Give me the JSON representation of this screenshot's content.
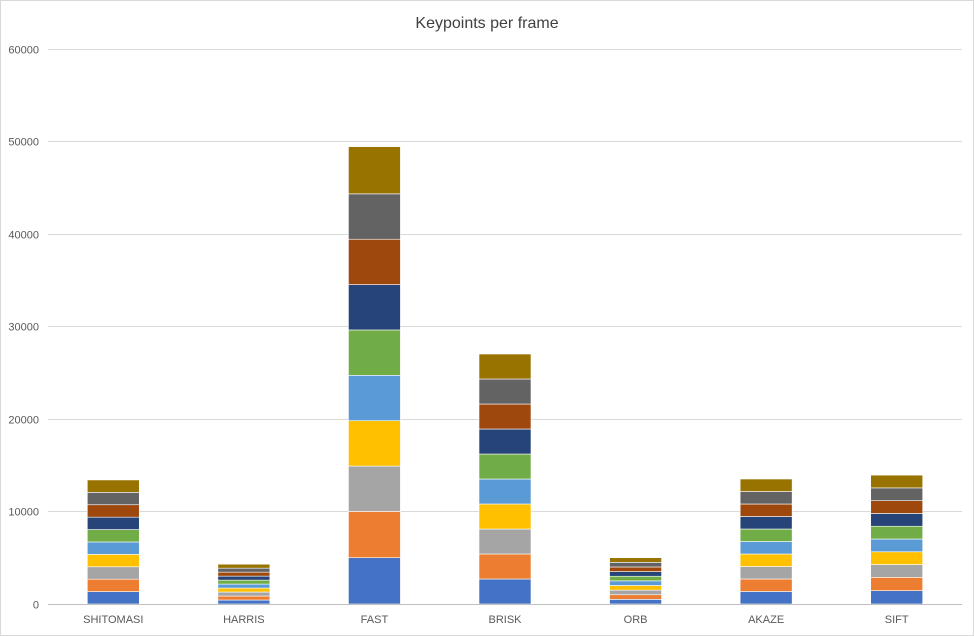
{
  "chart_data": {
    "type": "bar",
    "stacked": true,
    "title": "Keypoints per frame",
    "xlabel": "",
    "ylabel": "",
    "ylim": [
      0,
      60000
    ],
    "yticks": [
      0,
      10000,
      20000,
      30000,
      40000,
      50000,
      60000
    ],
    "grid": true,
    "legend": "none",
    "categories": [
      "SHITOMASI",
      "HARRIS",
      "FAST",
      "BRISK",
      "ORB",
      "AKAZE",
      "SIFT"
    ],
    "series": [
      {
        "color": "#4472C4",
        "values": [
          1340,
          430,
          5000,
          2700,
          500,
          1350,
          1440
        ]
      },
      {
        "color": "#ED7D31",
        "values": [
          1340,
          430,
          5000,
          2700,
          500,
          1350,
          1440
        ]
      },
      {
        "color": "#A5A5A5",
        "values": [
          1340,
          430,
          4900,
          2700,
          500,
          1350,
          1380
        ]
      },
      {
        "color": "#FFC000",
        "values": [
          1340,
          430,
          4900,
          2700,
          500,
          1350,
          1380
        ]
      },
      {
        "color": "#5B9BD5",
        "values": [
          1340,
          430,
          4900,
          2700,
          500,
          1350,
          1380
        ]
      },
      {
        "color": "#70AD47",
        "values": [
          1340,
          430,
          4900,
          2700,
          500,
          1350,
          1380
        ]
      },
      {
        "color": "#264478",
        "values": [
          1340,
          430,
          4900,
          2700,
          500,
          1350,
          1380
        ]
      },
      {
        "color": "#9E480E",
        "values": [
          1340,
          430,
          4900,
          2700,
          500,
          1350,
          1380
        ]
      },
      {
        "color": "#636363",
        "values": [
          1340,
          430,
          4900,
          2700,
          500,
          1350,
          1380
        ]
      },
      {
        "color": "#997300",
        "values": [
          1340,
          430,
          5100,
          2700,
          500,
          1350,
          1380
        ]
      }
    ]
  }
}
